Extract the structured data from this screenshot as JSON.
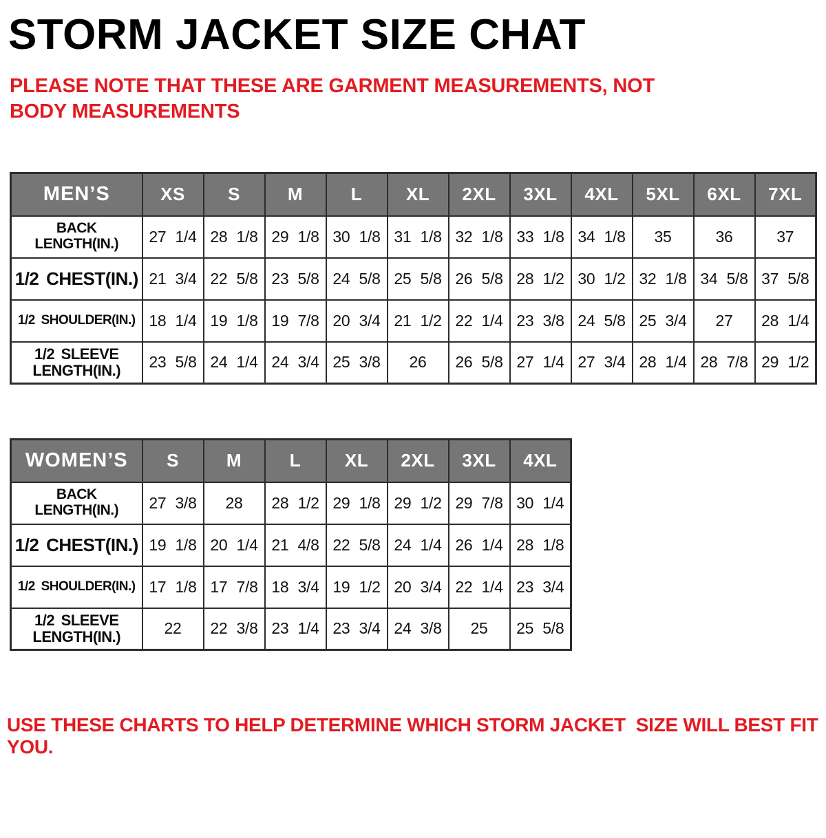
{
  "title": "STORM JACKET SIZE CHAT",
  "note": "PLEASE NOTE THAT THESE ARE GARMENT MEASUREMENTS, NOT BODY MEASUREMENTS",
  "footer": "USE THESE CHARTS TO HELP DETERMINE WHICH STORM JACKET  SIZE WILL BEST FIT YOU.",
  "colors": {
    "red": "#e21b22",
    "header_bg": "#767676",
    "header_text": "#ffffff",
    "border": "#2d2d2d"
  },
  "mens_table": {
    "label": "MEN’S",
    "sizes": [
      "XS",
      "S",
      "M",
      "L",
      "XL",
      "2XL",
      "3XL",
      "4XL",
      "5XL",
      "6XL",
      "7XL"
    ],
    "rows": [
      {
        "label": "BACK\nLENGTH(IN.)",
        "values": [
          "27 1/4",
          "28 1/8",
          "29 1/8",
          "30 1/8",
          "31 1/8",
          "32 1/8",
          "33 1/8",
          "34 1/8",
          "35",
          "36",
          "37"
        ]
      },
      {
        "label": "1/2 CHEST(IN.)",
        "values": [
          "21 3/4",
          "22 5/8",
          "23 5/8",
          "24 5/8",
          "25 5/8",
          "26 5/8",
          "28 1/2",
          "30 1/2",
          "32 1/8",
          "34 5/8",
          "37 5/8"
        ]
      },
      {
        "label": "1/2 SHOULDER(IN.)",
        "values": [
          "18 1/4",
          "19 1/8",
          "19 7/8",
          "20 3/4",
          "21 1/2",
          "22 1/4",
          "23 3/8",
          "24 5/8",
          "25 3/4",
          "27",
          "28 1/4"
        ]
      },
      {
        "label": "1/2 SLEEVE\nLENGTH(IN.)",
        "values": [
          "23 5/8",
          "24 1/4",
          "24 3/4",
          "25 3/8",
          "26",
          "26 5/8",
          "27 1/4",
          "27 3/4",
          "28 1/4",
          "28 7/8",
          "29 1/2"
        ]
      }
    ]
  },
  "womens_table": {
    "label": "WOMEN’S",
    "sizes": [
      "S",
      "M",
      "L",
      "XL",
      "2XL",
      "3XL",
      "4XL"
    ],
    "rows": [
      {
        "label": "BACK\nLENGTH(IN.)",
        "values": [
          "27 3/8",
          "28",
          "28 1/2",
          "29 1/8",
          "29 1/2",
          "29 7/8",
          "30 1/4"
        ]
      },
      {
        "label": "1/2 CHEST(IN.)",
        "values": [
          "19 1/8",
          "20 1/4",
          "21 4/8",
          "22 5/8",
          "24 1/4",
          "26 1/4",
          "28 1/8"
        ]
      },
      {
        "label": "1/2 SHOULDER(IN.)",
        "values": [
          "17 1/8",
          "17 7/8",
          "18 3/4",
          "19 1/2",
          "20 3/4",
          "22 1/4",
          "23 3/4"
        ]
      },
      {
        "label": "1/2 SLEEVE\nLENGTH(IN.)",
        "values": [
          "22",
          "22 3/8",
          "23 1/4",
          "23 3/4",
          "24 3/8",
          "25",
          "25 5/8"
        ]
      }
    ]
  }
}
